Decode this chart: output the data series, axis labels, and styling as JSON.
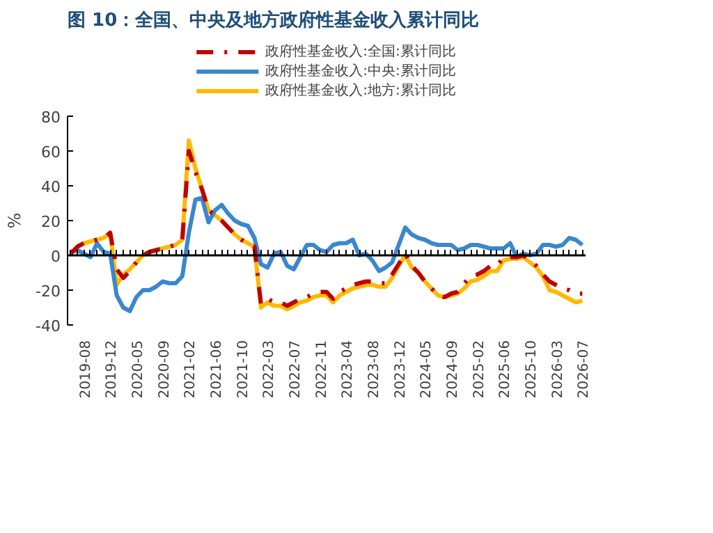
{
  "chart_data": {
    "type": "line",
    "title": "图 10：全国、中央及地方政府性基金收入累计同比",
    "ylabel": "%",
    "categories": [
      null,
      null,
      "2019-08",
      null,
      null,
      null,
      "2019-12",
      null,
      null,
      null,
      "2020-05",
      null,
      null,
      null,
      "2020-09",
      null,
      null,
      null,
      "2021-02",
      null,
      null,
      null,
      "2021-06",
      null,
      null,
      null,
      "2021-10",
      null,
      null,
      null,
      "2022-03",
      null,
      null,
      null,
      "2022-07",
      null,
      null,
      null,
      "2022-11",
      null,
      null,
      null,
      "2023-04",
      null,
      null,
      null,
      "2023-08",
      null,
      null,
      null,
      "2023-12",
      null,
      null,
      null,
      "2024-05",
      null,
      null,
      null,
      "2024-09",
      null,
      null,
      null,
      "2025-02",
      null,
      null,
      null,
      "2025-06",
      null,
      null,
      null,
      "2025-10",
      null,
      null,
      null,
      "2026-03",
      null,
      null,
      null,
      "2026-07"
    ],
    "series": [
      {
        "name": "政府性基金收入:全国:累计同比",
        "color": "#c00000",
        "line_style": "dashed",
        "values": [
          1,
          5,
          7,
          8,
          9,
          10,
          13,
          -8,
          -13,
          -9,
          -4,
          0,
          2,
          3,
          4,
          5,
          6,
          9,
          60,
          48,
          38,
          26,
          23,
          20,
          16,
          12,
          9,
          7,
          5,
          -28,
          -25,
          -27,
          -27,
          -29,
          -27,
          -25,
          -24,
          -22,
          -21,
          -21,
          -25,
          -21,
          -19,
          -17,
          -16,
          -15,
          -15,
          -16,
          -16,
          -11,
          -5,
          1,
          -6,
          -10,
          -15,
          -19,
          -23,
          -24,
          -22,
          -21,
          -16,
          -12,
          -11,
          -9,
          -6,
          -6,
          -1,
          -1,
          -1,
          0,
          -3,
          -6,
          -11,
          -15,
          -17,
          -19,
          -20,
          -22,
          -22
        ]
      },
      {
        "name": "政府性基金收入:中央:累计同比",
        "color": "#3a87d0",
        "line_style": "solid",
        "values": [
          2,
          3,
          1,
          -1,
          7,
          2,
          1,
          -23,
          -30,
          -32,
          -24,
          -20,
          -20,
          -18,
          -15,
          -16,
          -16,
          -12,
          13,
          32,
          33,
          19,
          26,
          29,
          24,
          20,
          18,
          17,
          10,
          -5,
          -7,
          1,
          2,
          -6,
          -8,
          -1,
          6,
          6,
          3,
          2,
          6,
          7,
          7,
          9,
          0,
          1,
          -3,
          -9,
          -7,
          -4,
          6,
          16,
          12,
          10,
          9,
          7,
          6,
          6,
          6,
          3,
          4,
          6,
          6,
          5,
          4,
          4,
          4,
          7,
          -1,
          1,
          0,
          1,
          6,
          6,
          5,
          6,
          10,
          9,
          6
        ]
      },
      {
        "name": "政府性基金收入:地方:累计同比",
        "color": "#ffb900",
        "line_style": "solid",
        "values": [
          1,
          5,
          7,
          8,
          9,
          10,
          13,
          -17,
          -11,
          -8,
          -4,
          0,
          2,
          3,
          4,
          5,
          6,
          9,
          66,
          50,
          38,
          26,
          23,
          20,
          16,
          12,
          9,
          7,
          5,
          -30,
          -27,
          -29,
          -29,
          -31,
          -29,
          -27,
          -26,
          -24,
          -23,
          -23,
          -27,
          -23,
          -21,
          -19,
          -18,
          -17,
          -17,
          -18,
          -18,
          -13,
          -6,
          0,
          -7,
          -10,
          -15,
          -19,
          -23,
          -24,
          -23,
          -22,
          -19,
          -15,
          -14,
          -12,
          -9,
          -9,
          -3,
          -2,
          -2,
          -1,
          -4,
          -7,
          -12,
          -20,
          -21,
          -23,
          -25,
          -27,
          -26
        ]
      }
    ],
    "ylim": [
      -40,
      80
    ],
    "yticks": [
      -40,
      -20,
      0,
      20,
      40,
      60,
      80
    ],
    "legend": "top"
  }
}
